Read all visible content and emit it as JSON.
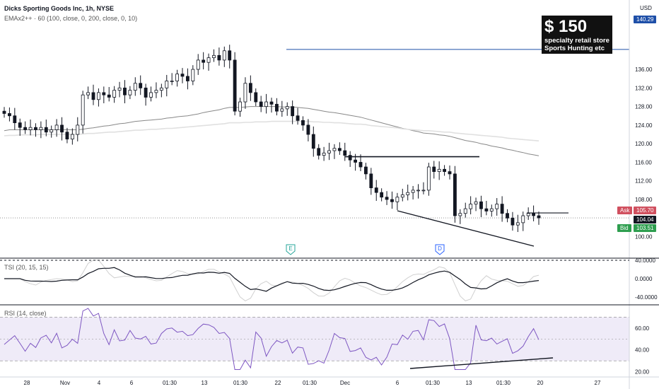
{
  "header": {
    "symbol_line": "Dicks Sporting Goods Inc, 1h, NYSE",
    "indicator_line": "EMAx2++ · 60 (100, close, 0, 200, close, 0, 10)",
    "currency": "USD"
  },
  "callout": {
    "title": "$ 150",
    "line1": "specialty retail store",
    "line2": "Sports Hunting etc"
  },
  "price_labels": {
    "target": "140.29",
    "ask_tag": "Ask",
    "ask": "105.70",
    "last": "104.04",
    "bid_tag": "Bid",
    "bid": "103.51"
  },
  "event_markers": [
    {
      "letter": "E",
      "name": "earnings-marker",
      "color": "#26a69a"
    },
    {
      "letter": "D",
      "name": "dividend-marker",
      "color": "#2962ff"
    }
  ],
  "tsi_panel": {
    "label": "TSI (20, 15, 15)"
  },
  "rsi_panel": {
    "label": "RSI (14, close)"
  },
  "chart_data": [
    {
      "type": "candlestick",
      "title": "Dicks Sporting Goods Inc, 1h, NYSE",
      "ylabel": "USD",
      "ylim": [
        96,
        148
      ],
      "y_ticks": [
        "136.00",
        "132.00",
        "128.00",
        "124.00",
        "120.00",
        "116.00",
        "112.00",
        "108.00",
        "100.00"
      ],
      "x_ticks": [
        "28",
        "Nov",
        "4",
        "6",
        "01:30",
        "13",
        "01:30",
        "22",
        "01:30",
        "Dec",
        "6",
        "01:30",
        "13",
        "01:30",
        "20",
        "27"
      ],
      "closes": [
        126.5,
        126.0,
        124.5,
        123.5,
        123.0,
        123.5,
        123.0,
        123.5,
        122.5,
        123.0,
        124.0,
        122.5,
        121.0,
        122.0,
        124.0,
        130.5,
        131.0,
        129.5,
        131.0,
        130.5,
        130.0,
        131.5,
        132.0,
        130.5,
        131.5,
        133.0,
        132.0,
        130.0,
        131.0,
        131.5,
        132.0,
        133.5,
        133.5,
        135.0,
        134.5,
        133.5,
        136.0,
        138.0,
        137.5,
        138.5,
        139.0,
        138.0,
        140.0,
        138.0,
        127.0,
        129.0,
        133.0,
        131.0,
        129.0,
        128.0,
        129.0,
        128.5,
        127.0,
        127.5,
        128.0,
        126.0,
        125.0,
        124.0,
        122.0,
        119.0,
        117.5,
        118.0,
        118.5,
        119.0,
        118.5,
        117.5,
        116.5,
        116.0,
        115.0,
        113.5,
        110.5,
        109.5,
        108.5,
        108.0,
        107.5,
        108.5,
        109.0,
        109.5,
        110.0,
        110.0,
        110.0,
        115.0,
        114.0,
        114.5,
        114.0,
        113.5,
        104.5,
        105.0,
        106.0,
        107.0,
        107.5,
        106.0,
        105.5,
        106.0,
        107.0,
        105.0,
        104.0,
        102.5,
        103.0,
        104.5,
        105.0,
        104.5,
        104.04
      ],
      "emas": [
        {
          "length": 100,
          "color": "#888888",
          "values": [
            122.8,
            123.0,
            123.0,
            123.0,
            123.0,
            123.0,
            123.0,
            123.0,
            123.0,
            123.0,
            123.0,
            123.0,
            123.0,
            123.0,
            123.0,
            123.1,
            123.3,
            123.4,
            123.6,
            123.8,
            123.9,
            124.1,
            124.3,
            124.4,
            124.6,
            124.8,
            124.9,
            125.0,
            125.1,
            125.2,
            125.3,
            125.5,
            125.6,
            125.8,
            125.9,
            126.0,
            126.2,
            126.4,
            126.7,
            126.9,
            127.1,
            127.3,
            127.6,
            127.8,
            127.8,
            127.8,
            127.9,
            128.0,
            128.0,
            128.0,
            128.0,
            128.0,
            128.0,
            127.9,
            127.9,
            127.9,
            127.8,
            127.7,
            127.6,
            127.4,
            127.2,
            127.0,
            126.8,
            126.7,
            126.5,
            126.3,
            126.1,
            125.9,
            125.7,
            125.4,
            125.1,
            124.8,
            124.5,
            124.2,
            123.9,
            123.6,
            123.3,
            123.1,
            122.8,
            122.6,
            122.3,
            122.2,
            122.1,
            121.9,
            121.8,
            121.6,
            121.3,
            121.0,
            120.7,
            120.5,
            120.3,
            120.0,
            119.8,
            119.5,
            119.3,
            119.1,
            118.8,
            118.6,
            118.3,
            118.1,
            117.8,
            117.6,
            117.4
          ]
        },
        {
          "length": 200,
          "color": "#e0e0e0",
          "values": [
            121.7,
            121.8,
            121.8,
            121.9,
            121.9,
            121.9,
            121.9,
            122.0,
            122.0,
            122.0,
            122.0,
            122.0,
            122.0,
            122.0,
            122.0,
            122.1,
            122.2,
            122.2,
            122.3,
            122.4,
            122.5,
            122.5,
            122.6,
            122.7,
            122.8,
            122.9,
            122.9,
            123.0,
            123.1,
            123.1,
            123.2,
            123.3,
            123.3,
            123.4,
            123.5,
            123.6,
            123.7,
            123.8,
            123.9,
            124.0,
            124.1,
            124.2,
            124.3,
            124.5,
            124.5,
            124.5,
            124.6,
            124.6,
            124.7,
            124.7,
            124.7,
            124.8,
            124.8,
            124.8,
            124.8,
            124.8,
            124.8,
            124.8,
            124.8,
            124.7,
            124.7,
            124.6,
            124.6,
            124.5,
            124.5,
            124.4,
            124.3,
            124.2,
            124.2,
            124.1,
            123.9,
            123.8,
            123.7,
            123.6,
            123.5,
            123.4,
            123.2,
            123.1,
            123.0,
            122.9,
            122.8,
            122.8,
            122.7,
            122.6,
            122.5,
            122.5,
            122.3,
            122.2,
            122.1,
            122.0,
            121.9,
            121.8,
            121.7,
            121.6,
            121.5,
            121.4,
            121.2,
            121.1,
            121.0,
            120.9,
            120.8,
            120.7,
            120.6
          ]
        }
      ],
      "annotations": {
        "target_price": 140.29,
        "resistance": 117.2,
        "recent_high": 105.1
      }
    },
    {
      "type": "line",
      "title": "TSI (20, 15, 15)",
      "ylim": [
        -52,
        44
      ],
      "y_ticks": [
        "40.0000",
        "0.0000",
        "-40.0000"
      ]
    },
    {
      "type": "line",
      "title": "RSI (14, close)",
      "ylim": [
        18,
        86
      ],
      "y_ticks": [
        "60.00",
        "40.00",
        "20.00"
      ],
      "band": [
        30,
        70
      ]
    }
  ]
}
